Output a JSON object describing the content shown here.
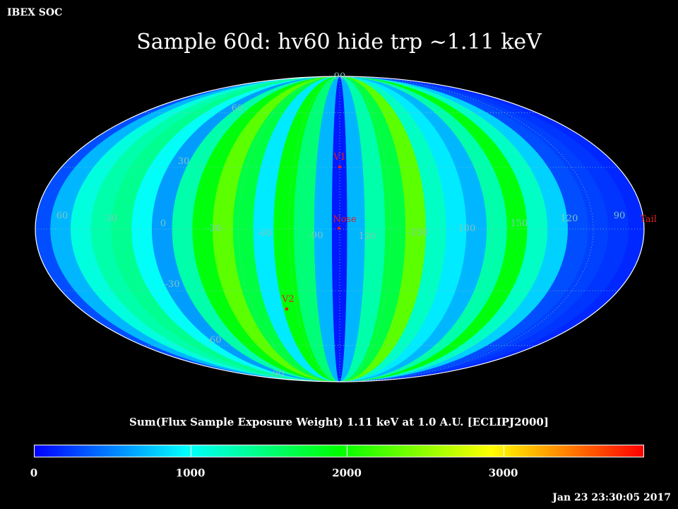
{
  "header": {
    "org": "IBEX SOC",
    "timestamp": "Jan 23 23:30:05 2017"
  },
  "chart_data": {
    "type": "heatmap",
    "projection": "mollweide",
    "title": "Sample 60d: hv60 hide trp ~1.11 keV",
    "colorbar": {
      "label": "Sum(Flux Sample Exposure Weight)  1.11 keV at 1.0 A.U. [ECLIPJ2000]",
      "range": [
        0,
        3900
      ],
      "ticks": [
        "0",
        "1000",
        "2000",
        "3000"
      ],
      "tick_values": [
        0,
        1000,
        2000,
        3000
      ],
      "colors": [
        "#0000ff",
        "#00ffff",
        "#00ff00",
        "#ffff00",
        "#ff0000"
      ]
    },
    "graticule": {
      "longitude_labels": [
        "60",
        "30",
        "0",
        "-30",
        "-60",
        "-90",
        "120",
        "-150",
        "180",
        "150",
        "120",
        "90"
      ],
      "latitude_labels": [
        "90",
        "60",
        "30",
        "-30",
        "-60",
        "-90"
      ],
      "color": "#7bc7c0"
    },
    "markers": [
      {
        "label": "V1",
        "x": 0,
        "lat": 34,
        "color": "#e02020"
      },
      {
        "label": "Nose",
        "x": 0,
        "lat": -3,
        "color": "#e02020"
      },
      {
        "label": "V2",
        "x": -80,
        "lat": -32,
        "color": "#e02020"
      },
      {
        "label": "Tail",
        "x": 180,
        "lat": 0,
        "color": "#e02020"
      }
    ],
    "bands": [
      {
        "lon": -177,
        "value": 300
      },
      {
        "lon": -165,
        "value": 700
      },
      {
        "lon": -153,
        "value": 1100
      },
      {
        "lon": -141,
        "value": 1300
      },
      {
        "lon": -129,
        "value": 1400
      },
      {
        "lon": -117,
        "value": 1000
      },
      {
        "lon": -105,
        "value": 600
      },
      {
        "lon": -93,
        "value": 1300
      },
      {
        "lon": -81,
        "value": 1900
      },
      {
        "lon": -69,
        "value": 2300
      },
      {
        "lon": -57,
        "value": 1700
      },
      {
        "lon": -45,
        "value": 900
      },
      {
        "lon": -33,
        "value": 1900
      },
      {
        "lon": -21,
        "value": 1500
      },
      {
        "lon": -9,
        "value": 700
      },
      {
        "lon": 0,
        "value": 100
      },
      {
        "lon": 9,
        "value": 700
      },
      {
        "lon": 21,
        "value": 1300
      },
      {
        "lon": 33,
        "value": 1700
      },
      {
        "lon": 45,
        "value": 2300
      },
      {
        "lon": 57,
        "value": 1200
      },
      {
        "lon": 69,
        "value": 900
      },
      {
        "lon": 81,
        "value": 700
      },
      {
        "lon": 93,
        "value": 1300
      },
      {
        "lon": 105,
        "value": 1900
      },
      {
        "lon": 117,
        "value": 1200
      },
      {
        "lon": 129,
        "value": 800
      },
      {
        "lon": 141,
        "value": 300
      },
      {
        "lon": 153,
        "value": 250
      },
      {
        "lon": 165,
        "value": 200
      },
      {
        "lon": 177,
        "value": 150
      }
    ]
  }
}
